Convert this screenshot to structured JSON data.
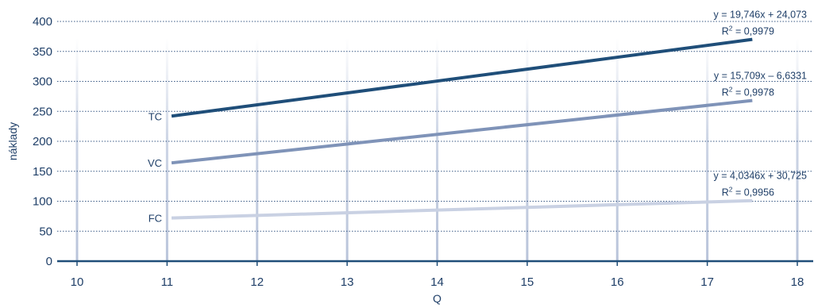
{
  "chart_data": {
    "type": "line",
    "title": "",
    "xlabel": "Q",
    "ylabel": "náklady",
    "xlim": [
      10,
      18
    ],
    "ylim": [
      0,
      400
    ],
    "x_ticks": [
      10,
      11,
      12,
      13,
      14,
      15,
      16,
      17,
      18
    ],
    "y_ticks": [
      0,
      50,
      100,
      150,
      200,
      250,
      300,
      350,
      400
    ],
    "grid": {
      "horizontal": "dotted",
      "vertical": "faded"
    },
    "series": [
      {
        "name": "TC",
        "color": "#1f4e79",
        "points": [
          [
            11.05,
            242
          ],
          [
            17.5,
            370
          ]
        ],
        "trendline": "y = 19,746x + 24,073",
        "r2_base": "R",
        "r2_exp": "2",
        "r2_value": " = 0,9979"
      },
      {
        "name": "VC",
        "color": "#7f93b8",
        "points": [
          [
            11.05,
            164
          ],
          [
            17.5,
            268
          ]
        ],
        "trendline": "y = 15,709x – 6,6331",
        "r2_base": "R",
        "r2_exp": "2",
        "r2_value": " = 0,9978"
      },
      {
        "name": "FC",
        "color": "#c9d1e3",
        "points": [
          [
            11.05,
            72
          ],
          [
            17.5,
            101
          ]
        ],
        "trendline": "y = 4,0346x + 30,725",
        "r2_base": "R",
        "r2_exp": "2",
        "r2_value": " = 0,9956"
      }
    ]
  }
}
